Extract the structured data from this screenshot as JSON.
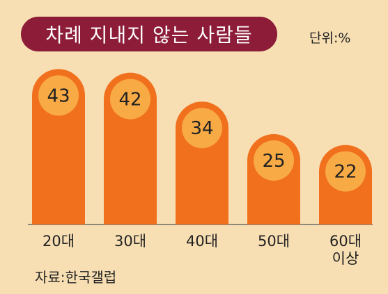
{
  "title": "차례 지내지 않는 사람들",
  "unit": "단위:%",
  "source": "자료:한국갤럽",
  "colors": {
    "background": "#f7dfb3",
    "title_pill": "#8c1c38",
    "bar": "#f1701e",
    "badge": "#f8aa45",
    "axis": "#6b6b6b"
  },
  "chart_data": {
    "type": "bar",
    "title": "차례 지내지 않는 사람들",
    "categories": [
      "20대",
      "30대",
      "40대",
      "50대",
      "60대 이상"
    ],
    "values": [
      43,
      42,
      34,
      25,
      22
    ],
    "unit": "%",
    "ylim": [
      0,
      50
    ],
    "data_labels": true,
    "grid": false,
    "legend": "none"
  }
}
